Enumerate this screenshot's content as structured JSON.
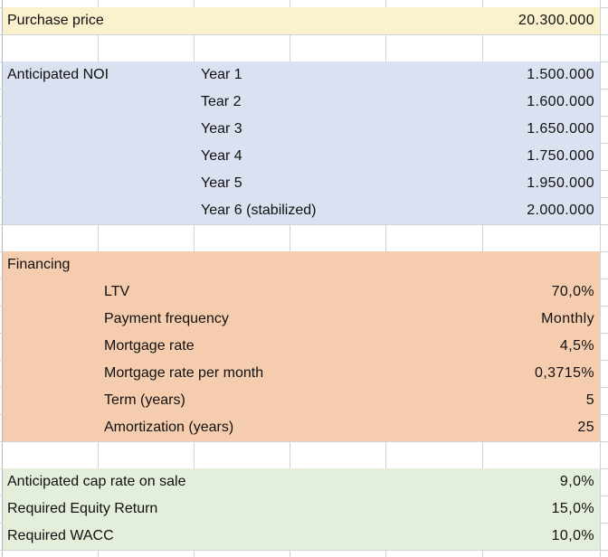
{
  "sheet": {
    "kind": "spreadsheet-grid",
    "colors": {
      "band_yellow": "#fbf1cd",
      "band_blue": "#dae1f1",
      "band_orange": "#f5cdae",
      "band_green": "#e3efdb",
      "gridline": "#cfd2d6",
      "left_edge_line": "#b4b7bb",
      "text": "#101010",
      "background": "#ffffff"
    },
    "rows": [
      {
        "band": "yellow",
        "labels": {
          "a": "Purchase price"
        },
        "value": "20.300.000"
      },
      {
        "band": "none",
        "labels": {},
        "value": ""
      },
      {
        "band": "blue",
        "labels": {
          "a": "Anticipated NOI",
          "c": "Year 1"
        },
        "value": "1.500.000"
      },
      {
        "band": "blue",
        "labels": {
          "c": "Tear 2"
        },
        "value": "1.600.000"
      },
      {
        "band": "blue",
        "labels": {
          "c": "Year 3"
        },
        "value": "1.650.000"
      },
      {
        "band": "blue",
        "labels": {
          "c": "Year 4"
        },
        "value": "1.750.000"
      },
      {
        "band": "blue",
        "labels": {
          "c": "Year 5"
        },
        "value": "1.950.000"
      },
      {
        "band": "blue",
        "labels": {
          "c": "Year 6 (stabilized)"
        },
        "value": "2.000.000"
      },
      {
        "band": "none",
        "labels": {},
        "value": ""
      },
      {
        "band": "orange",
        "labels": {
          "a": "Financing"
        },
        "value": ""
      },
      {
        "band": "orange",
        "labels": {
          "b": "LTV"
        },
        "value": "70,0%"
      },
      {
        "band": "orange",
        "labels": {
          "b": "Payment frequency"
        },
        "value": "Monthly"
      },
      {
        "band": "orange",
        "labels": {
          "b": "Mortgage rate"
        },
        "value": "4,5%"
      },
      {
        "band": "orange",
        "labels": {
          "b": "Mortgage rate per month"
        },
        "value": "0,3715%"
      },
      {
        "band": "orange",
        "labels": {
          "b": "Term (years)"
        },
        "value": "5"
      },
      {
        "band": "orange",
        "labels": {
          "b": "Amortization (years)"
        },
        "value": "25"
      },
      {
        "band": "none",
        "labels": {},
        "value": ""
      },
      {
        "band": "green",
        "labels": {
          "a": "Anticipated cap rate on sale"
        },
        "value": "9,0%"
      },
      {
        "band": "green",
        "labels": {
          "a": "Required Equity Return"
        },
        "value": "15,0%"
      },
      {
        "band": "green",
        "labels": {
          "a": "Required WACC"
        },
        "value": "10,0%"
      }
    ]
  }
}
